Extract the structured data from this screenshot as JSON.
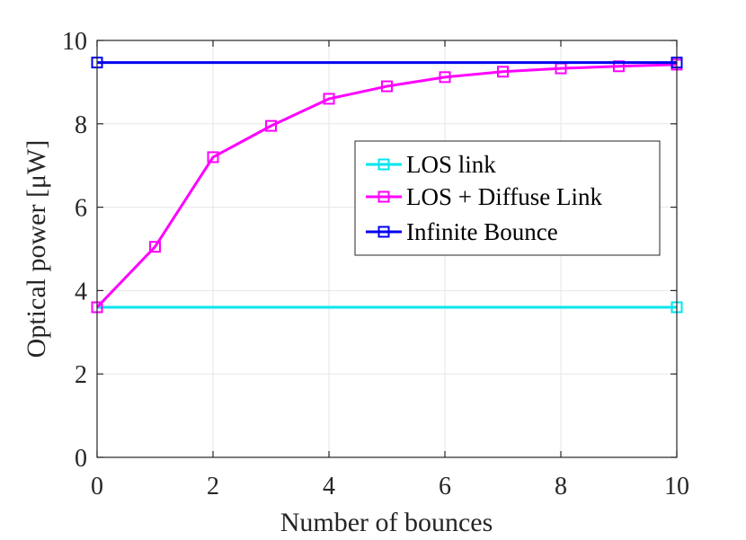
{
  "chart_data": {
    "type": "line",
    "title": "",
    "xlabel": "Number of bounces",
    "ylabel": "Optical power [μW]",
    "xlim": [
      0,
      10
    ],
    "ylim": [
      0,
      10
    ],
    "xticks": [
      0,
      2,
      4,
      6,
      8,
      10
    ],
    "yticks": [
      0,
      2,
      4,
      6,
      8,
      10
    ],
    "grid": true,
    "legend_position": "center-right",
    "series": [
      {
        "name": "LOS link",
        "color": "#00e5ee",
        "marker": "square",
        "x": [
          0,
          10
        ],
        "y": [
          3.6,
          3.6
        ]
      },
      {
        "name": "LOS + Diffuse Link",
        "color": "#ff00ff",
        "marker": "square",
        "x": [
          0,
          1,
          2,
          3,
          4,
          5,
          6,
          7,
          8,
          9,
          10
        ],
        "y": [
          3.6,
          5.05,
          7.2,
          7.95,
          8.6,
          8.9,
          9.12,
          9.25,
          9.33,
          9.38,
          9.42
        ]
      },
      {
        "name": "Infinite Bounce",
        "color": "#0000ee",
        "marker": "square",
        "x": [
          0,
          10
        ],
        "y": [
          9.47,
          9.47
        ]
      }
    ]
  }
}
